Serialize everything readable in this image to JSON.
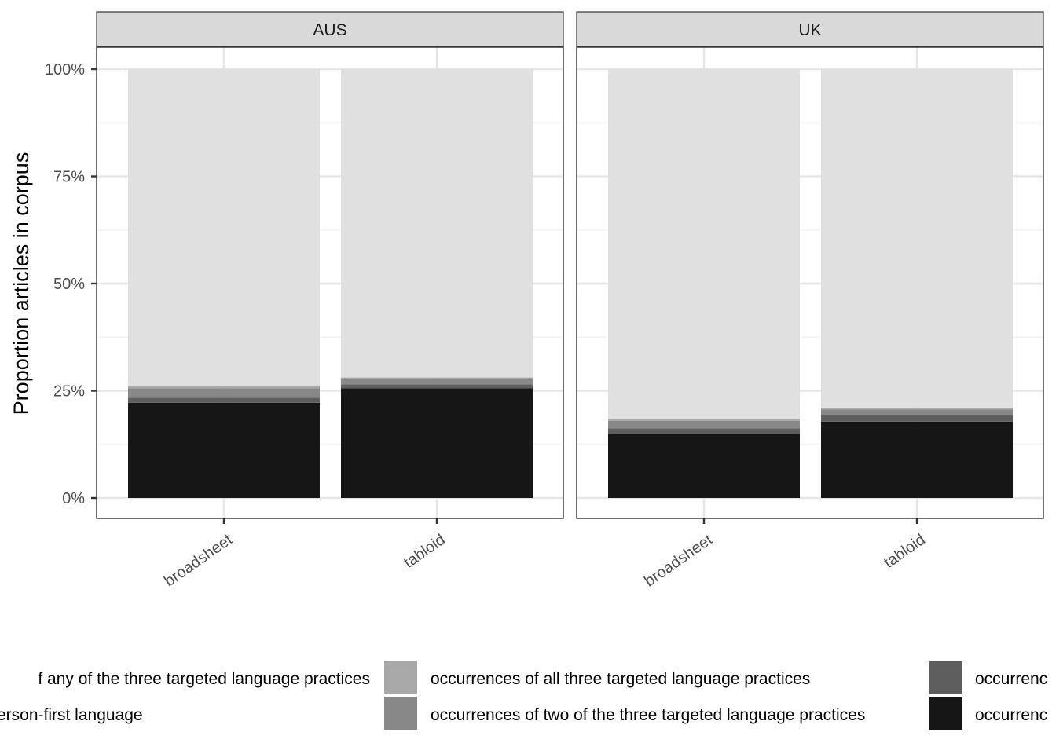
{
  "chart_data": {
    "type": "bar",
    "stacked": true,
    "ylabel": "Proportion articles in corpus",
    "xlabel": "",
    "ylim": [
      0,
      1
    ],
    "y_ticks": [
      {
        "value": 0,
        "label": "0%"
      },
      {
        "value": 0.25,
        "label": "25%"
      },
      {
        "value": 0.5,
        "label": "50%"
      },
      {
        "value": 0.75,
        "label": "75%"
      },
      {
        "value": 1,
        "label": "100%"
      }
    ],
    "categories": [
      "broadsheet",
      "tabloid"
    ],
    "facets": [
      {
        "name": "AUS",
        "bars": [
          {
            "category": "broadsheet",
            "stack": [
              0.222,
              0.012,
              0.022,
              0.005,
              0.739
            ]
          },
          {
            "category": "tabloid",
            "stack": [
              0.256,
              0.009,
              0.012,
              0.004,
              0.719
            ]
          }
        ]
      },
      {
        "name": "UK",
        "bars": [
          {
            "category": "broadsheet",
            "stack": [
              0.15,
              0.012,
              0.018,
              0.004,
              0.816
            ]
          },
          {
            "category": "tabloid",
            "stack": [
              0.178,
              0.015,
              0.013,
              0.004,
              0.79
            ]
          }
        ]
      }
    ],
    "series": [
      {
        "label": "occurrenc",
        "color": "#161616"
      },
      {
        "label": "occurrenc",
        "color": "#5e5e5e"
      },
      {
        "label": "occurrences of two of the three targeted language practices",
        "color": "#888888"
      },
      {
        "label": "occurrences of all three targeted language practices",
        "color": "#a8a8a8"
      },
      {
        "label": "f any of the three targeted language practices",
        "color": "#e0e0e0"
      }
    ],
    "legend": {
      "position": "bottom",
      "extra_text": "erson-first language"
    },
    "grid": true
  }
}
